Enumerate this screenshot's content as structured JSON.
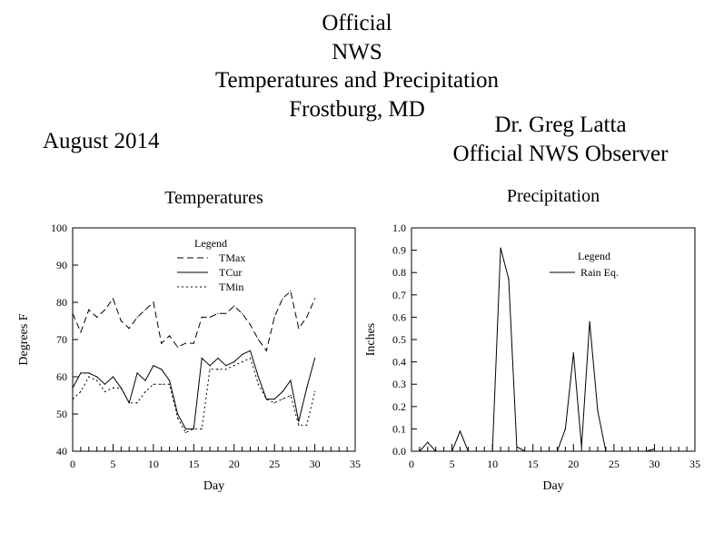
{
  "header": {
    "title_lines": [
      "Official",
      "NWS",
      "Temperatures and Precipitation",
      "Frostburg, MD"
    ],
    "observer_lines": [
      "Dr. Greg Latta",
      "Official NWS Observer"
    ],
    "month": "August 2014"
  },
  "chart_data": [
    {
      "type": "line",
      "title": "Temperatures",
      "xlabel": "Day",
      "ylabel": "Degrees F",
      "xlim": [
        0,
        35
      ],
      "ylim": [
        40,
        100
      ],
      "xticks": [
        0,
        5,
        10,
        15,
        20,
        25,
        30,
        35
      ],
      "yticks": [
        40,
        50,
        60,
        70,
        80,
        90,
        100
      ],
      "legend": {
        "title": "Legend",
        "position": "top-center"
      },
      "x": [
        0,
        1,
        2,
        3,
        4,
        5,
        6,
        7,
        8,
        9,
        10,
        11,
        12,
        13,
        14,
        15,
        16,
        17,
        18,
        19,
        20,
        21,
        22,
        23,
        24,
        25,
        26,
        27,
        28,
        29,
        30
      ],
      "series": [
        {
          "name": "TMax",
          "style": "dashed",
          "values": [
            77,
            72,
            78,
            76,
            78,
            81,
            75,
            73,
            76,
            78,
            80,
            69,
            71,
            68,
            69,
            69,
            76,
            76,
            77,
            77,
            79,
            77,
            74,
            70,
            67,
            76,
            81,
            83,
            73,
            76,
            81
          ]
        },
        {
          "name": "TCur",
          "style": "solid",
          "values": [
            57,
            61,
            61,
            60,
            58,
            60,
            57,
            53,
            61,
            59,
            63,
            62,
            59,
            50,
            46,
            46,
            65,
            63,
            65,
            63,
            64,
            66,
            67,
            60,
            54,
            54,
            56,
            59,
            48,
            57,
            65
          ]
        },
        {
          "name": "TMin",
          "style": "dotted",
          "values": [
            54,
            56,
            60,
            59,
            56,
            57,
            57,
            53,
            53,
            56,
            58,
            58,
            58,
            49,
            45,
            46,
            46,
            62,
            62,
            62,
            63,
            64,
            65,
            58,
            54,
            53,
            54,
            55,
            47,
            47,
            56
          ]
        }
      ]
    },
    {
      "type": "line",
      "title": "Precipitation",
      "xlabel": "Day",
      "ylabel": "Inches",
      "xlim": [
        0,
        35
      ],
      "ylim": [
        0,
        1.0
      ],
      "xticks": [
        0,
        5,
        10,
        15,
        20,
        25,
        30,
        35
      ],
      "yticks": [
        0.0,
        0.1,
        0.2,
        0.3,
        0.4,
        0.5,
        0.6,
        0.7,
        0.8,
        0.9,
        1.0
      ],
      "legend": {
        "title": "Legend",
        "position": "top-right"
      },
      "x": [
        0,
        1,
        2,
        3,
        4,
        5,
        6,
        7,
        8,
        9,
        10,
        11,
        12,
        13,
        14,
        15,
        16,
        17,
        18,
        19,
        20,
        21,
        22,
        23,
        24,
        25,
        26,
        27,
        28,
        29,
        30
      ],
      "series": [
        {
          "name": "Rain Eq.",
          "style": "solid",
          "values": [
            0,
            0,
            0.04,
            0,
            0,
            0,
            0.09,
            0,
            0,
            0,
            0,
            0.91,
            0.77,
            0.02,
            0,
            0,
            0,
            0,
            0,
            0.1,
            0.44,
            0.02,
            0.58,
            0.18,
            0,
            0,
            0,
            0,
            0,
            0,
            0.01
          ]
        }
      ]
    }
  ]
}
